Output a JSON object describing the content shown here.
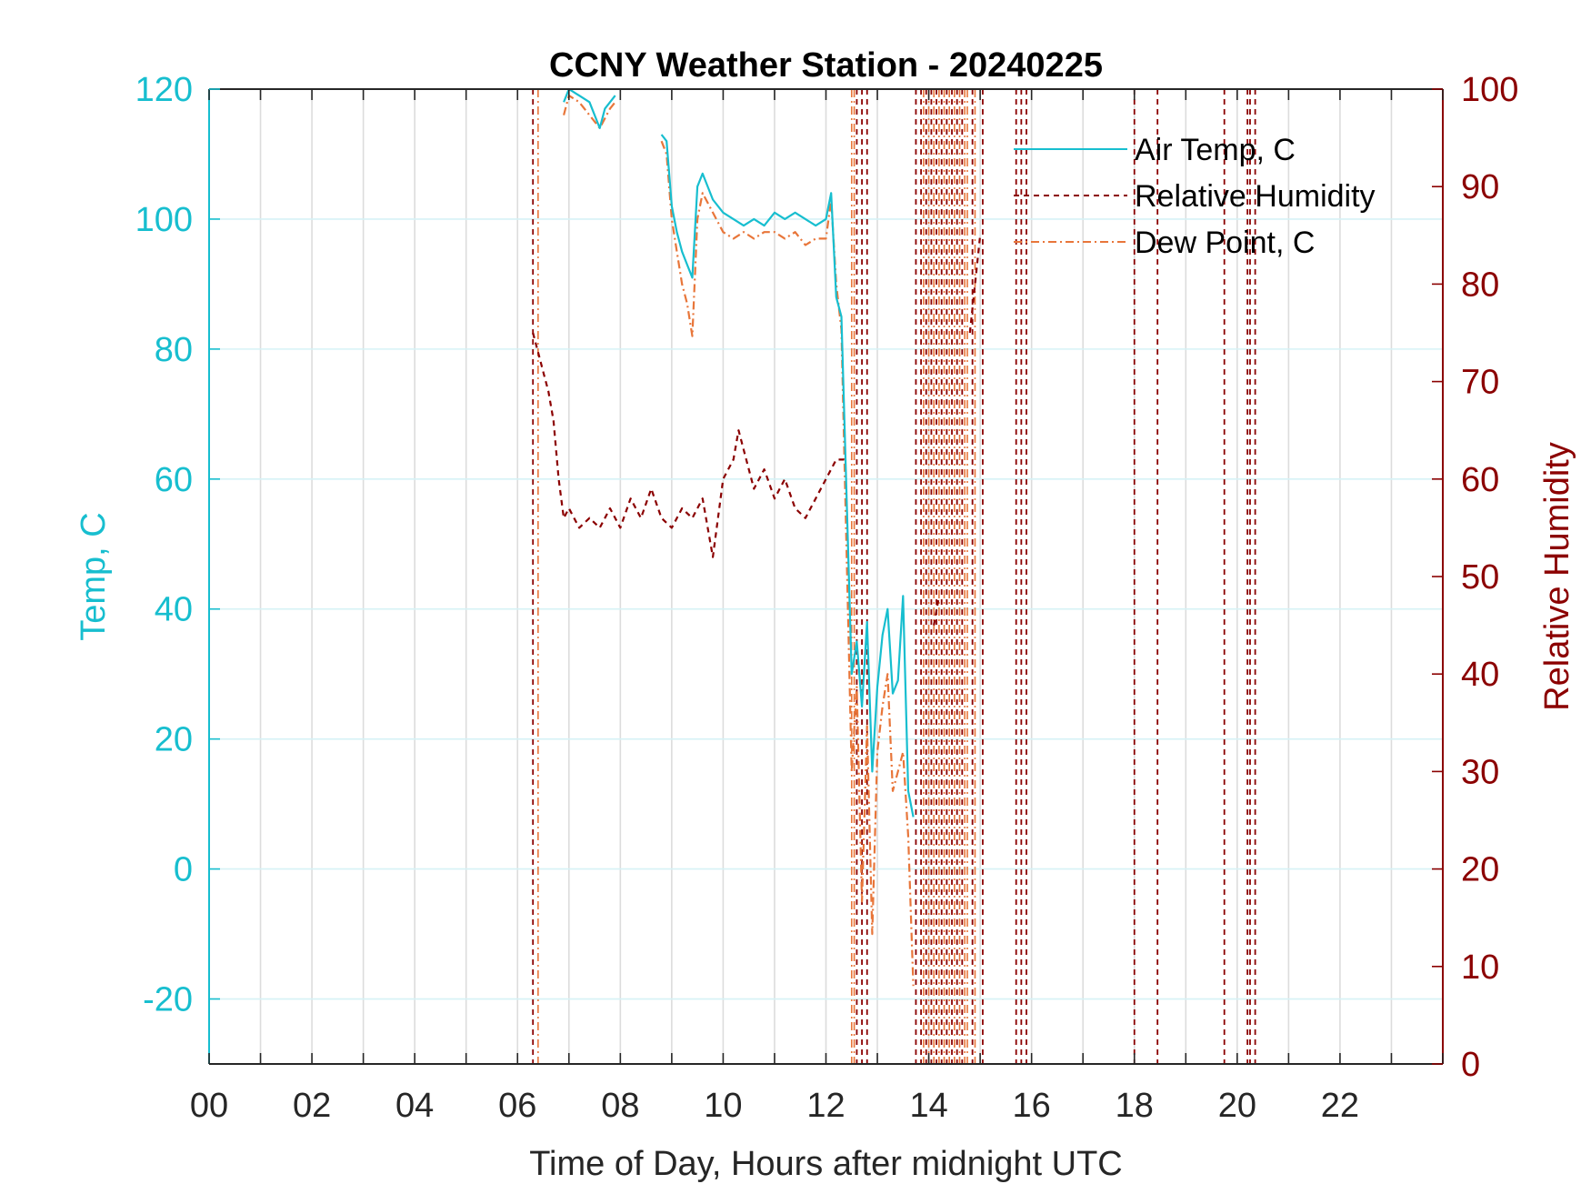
{
  "chart_data": {
    "type": "line",
    "title": "CCNY Weather Station - 20240225",
    "xlabel": "Time of Day, Hours after midnight UTC",
    "ylabel_left": "Temp, C",
    "ylabel_right": "Relative Humidity",
    "xlim": [
      0,
      24
    ],
    "ylim_left": [
      -30,
      120
    ],
    "ylim_right": [
      0,
      100
    ],
    "x_ticks": [
      0,
      2,
      4,
      6,
      8,
      10,
      12,
      14,
      16,
      18,
      20,
      22
    ],
    "x_tick_labels": [
      "00",
      "02",
      "04",
      "06",
      "08",
      "10",
      "12",
      "14",
      "16",
      "18",
      "20",
      "22"
    ],
    "y_left_ticks": [
      -20,
      0,
      20,
      40,
      60,
      80,
      100,
      120
    ],
    "y_left_tick_labels": [
      "-20",
      "0",
      "20",
      "40",
      "60",
      "80",
      "100",
      "120"
    ],
    "y_right_ticks": [
      0,
      10,
      20,
      30,
      40,
      50,
      60,
      70,
      80,
      90,
      100
    ],
    "y_right_tick_labels": [
      "0",
      "10",
      "20",
      "30",
      "40",
      "50",
      "60",
      "70",
      "80",
      "90",
      "100"
    ],
    "grid": true,
    "legend_position": "top-right",
    "colors": {
      "air_temp": "#17becf",
      "relative_humidity": "#8b0000",
      "dew_point": "#e8763a",
      "axis_left": "#17becf",
      "axis_right": "#8b0000"
    },
    "series": [
      {
        "name": "Air Temp, C",
        "axis": "left",
        "style": "solid",
        "x": [
          6.9,
          7.0,
          7.2,
          7.4,
          7.6,
          7.7,
          7.8,
          7.9,
          8.8,
          8.9,
          9.0,
          9.1,
          9.2,
          9.3,
          9.4,
          9.5,
          9.6,
          9.8,
          10.0,
          10.2,
          10.4,
          10.6,
          10.8,
          11.0,
          11.2,
          11.4,
          11.6,
          11.8,
          12.0,
          12.1,
          12.2,
          12.3,
          12.5,
          12.6,
          12.7,
          12.8,
          12.9,
          13.0,
          13.1,
          13.2,
          13.3,
          13.4,
          13.5,
          13.6,
          13.7
        ],
        "y": [
          118,
          120,
          119,
          118,
          114,
          117,
          118,
          119,
          113,
          112,
          102,
          98,
          95,
          93,
          91,
          105,
          107,
          103,
          101,
          100,
          99,
          100,
          99,
          101,
          100,
          101,
          100,
          99,
          100,
          104,
          88,
          85,
          30,
          35,
          25,
          38,
          15,
          28,
          36,
          40,
          27,
          29,
          42,
          12,
          8
        ]
      },
      {
        "name": "Relative Humidity",
        "axis": "right",
        "style": "dashed",
        "x": [
          6.3,
          6.4,
          6.5,
          6.6,
          6.7,
          6.8,
          6.9,
          7.0,
          7.2,
          7.4,
          7.6,
          7.8,
          8.0,
          8.2,
          8.4,
          8.6,
          8.8,
          9.0,
          9.2,
          9.4,
          9.6,
          9.8,
          10.0,
          10.2,
          10.3,
          10.4,
          10.6,
          10.8,
          11.0,
          11.2,
          11.4,
          11.6,
          11.8,
          12.0,
          12.2,
          12.4,
          14.1,
          14.2,
          14.8,
          14.9,
          15.0
        ],
        "y": [
          75,
          73,
          71,
          69,
          66,
          60,
          56,
          57,
          55,
          56,
          55,
          57,
          55,
          58,
          56,
          59,
          56,
          55,
          57,
          56,
          58,
          52,
          60,
          62,
          65,
          63,
          59,
          61,
          58,
          60,
          57,
          56,
          58,
          60,
          62,
          62,
          45,
          48,
          75,
          80,
          85
        ]
      },
      {
        "name": "Dew Point, C",
        "axis": "left",
        "style": "dashdot",
        "x": [
          6.9,
          7.0,
          7.2,
          7.4,
          7.6,
          7.8,
          7.9,
          8.8,
          8.9,
          9.0,
          9.1,
          9.2,
          9.3,
          9.4,
          9.5,
          9.6,
          9.8,
          10.0,
          10.2,
          10.4,
          10.6,
          10.8,
          11.0,
          11.2,
          11.4,
          11.6,
          11.8,
          12.0,
          12.1,
          12.2,
          12.3,
          12.5,
          12.6,
          12.7,
          12.8,
          12.9,
          13.0,
          13.1,
          13.2,
          13.3,
          13.4,
          13.5,
          13.6,
          13.7
        ],
        "y": [
          116,
          119,
          118,
          116,
          114,
          117,
          118,
          112,
          110,
          100,
          95,
          90,
          87,
          82,
          100,
          104,
          101,
          98,
          97,
          98,
          97,
          98,
          98,
          97,
          98,
          96,
          97,
          97,
          103,
          90,
          83,
          15,
          28,
          -5,
          22,
          -10,
          18,
          25,
          30,
          12,
          15,
          18,
          5,
          -18
        ]
      }
    ],
    "vertical_spikes": {
      "dew_point": [
        6.4,
        12.5,
        12.55,
        13.9,
        14.0,
        14.1,
        14.2,
        14.3,
        14.4,
        14.5,
        14.6,
        14.7,
        14.75,
        14.9
      ],
      "relative_humidity": [
        6.3,
        12.6,
        12.7,
        12.8,
        13.75,
        13.85,
        13.95,
        14.05,
        14.15,
        14.25,
        14.35,
        14.45,
        14.55,
        14.65,
        14.85,
        15.05,
        15.7,
        15.8,
        15.9,
        18.0,
        18.45,
        19.75,
        20.2,
        20.25,
        20.35
      ]
    }
  }
}
